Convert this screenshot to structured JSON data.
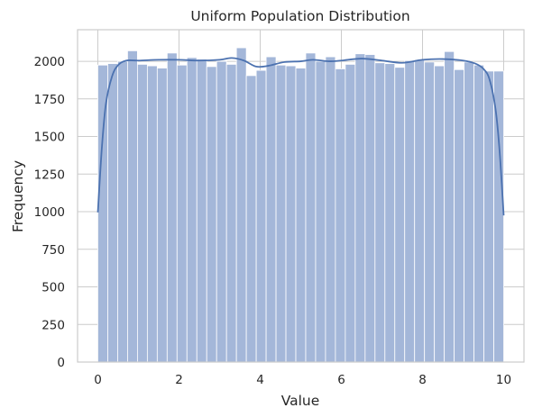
{
  "chart_data": {
    "type": "bar",
    "title": "Uniform Population Distribution",
    "xlabel": "Value",
    "ylabel": "Frequency",
    "xlim": [
      -0.5,
      10.5
    ],
    "ylim": [
      0,
      2210
    ],
    "xticks": [
      0,
      2,
      4,
      6,
      8,
      10
    ],
    "yticks": [
      0,
      250,
      500,
      750,
      1000,
      1250,
      1500,
      1750,
      2000
    ],
    "grid": true,
    "bin_start": 0,
    "bin_end": 10,
    "counts": [
      1975,
      1985,
      2000,
      2070,
      1980,
      1970,
      1955,
      2055,
      1975,
      2025,
      2015,
      1965,
      2000,
      1980,
      2090,
      1905,
      1940,
      2030,
      1975,
      1970,
      1955,
      2055,
      2000,
      2030,
      1950,
      1980,
      2050,
      2045,
      1990,
      1985,
      1960,
      2005,
      2010,
      1995,
      1970,
      2065,
      1945,
      1995,
      1975,
      1935,
      1935
    ],
    "kde": {
      "x": [
        0,
        0.1,
        0.2,
        0.35,
        0.5,
        0.7,
        1.0,
        1.5,
        2.0,
        2.5,
        3.0,
        3.3,
        3.6,
        3.9,
        4.2,
        4.6,
        5.0,
        5.3,
        5.7,
        6.0,
        6.5,
        7.0,
        7.5,
        8.0,
        8.5,
        9.0,
        9.3,
        9.5,
        9.65,
        9.8,
        9.9,
        10.0
      ],
      "y": [
        995,
        1430,
        1720,
        1900,
        1975,
        2005,
        2005,
        2010,
        2010,
        2005,
        2010,
        2022,
        2005,
        1965,
        1970,
        1995,
        2000,
        2010,
        2000,
        2005,
        2018,
        2005,
        1990,
        2010,
        2015,
        2005,
        1985,
        1950,
        1880,
        1680,
        1400,
        975
      ]
    },
    "colors": {
      "bar_fill": "#a4b7d9",
      "bar_edge": "#ffffff",
      "kde_line": "#4c72b0",
      "grid": "#cccccc",
      "spine": "#cccccc"
    }
  }
}
